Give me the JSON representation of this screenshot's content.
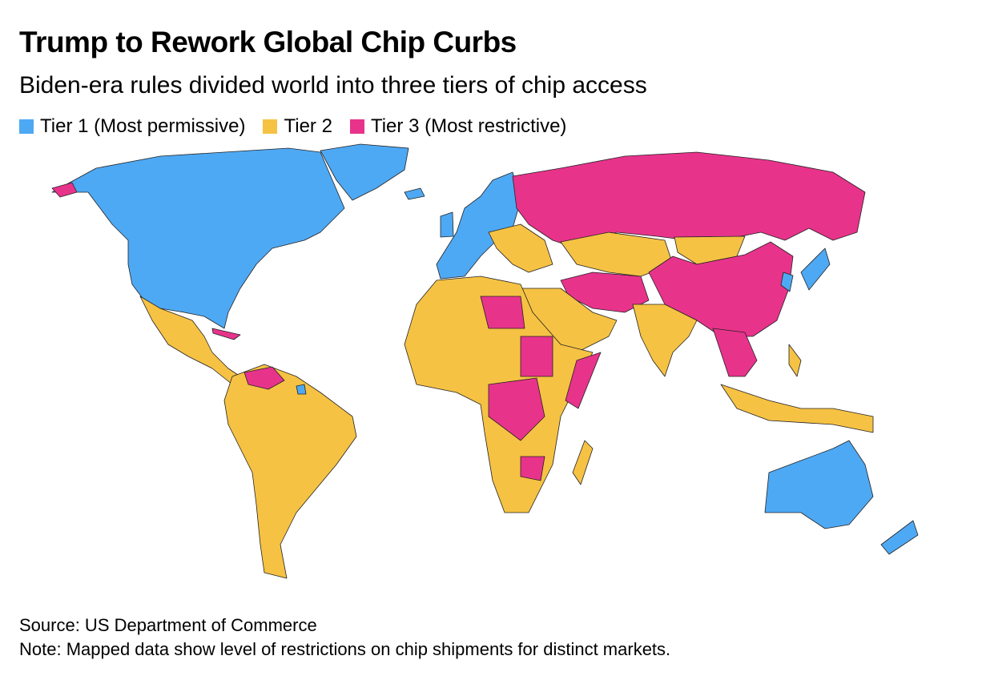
{
  "title": "Trump to Rework Global Chip Curbs",
  "subtitle": "Biden-era rules divided world into three tiers of chip access",
  "legend": [
    {
      "label": "Tier 1 (Most permissive)",
      "color": "#4ea9f4"
    },
    {
      "label": "Tier 2",
      "color": "#f6c244"
    },
    {
      "label": "Tier 3 (Most restrictive)",
      "color": "#e8338b"
    }
  ],
  "source": "Source: US Department of Commerce",
  "note": "Note: Mapped data show level of restrictions on chip shipments for distinct markets."
}
